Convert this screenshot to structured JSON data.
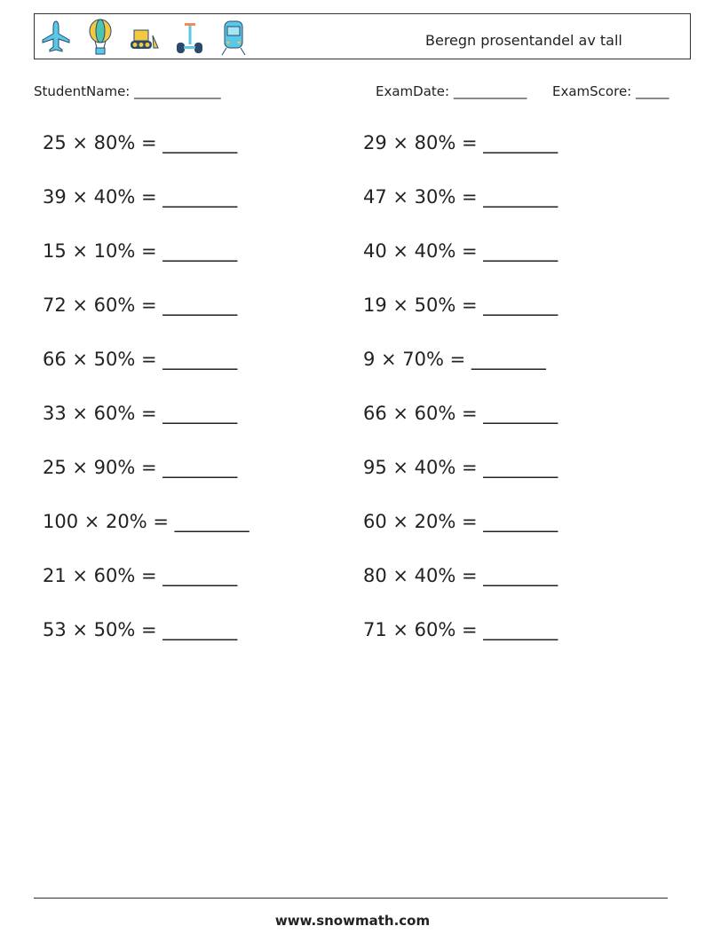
{
  "header": {
    "icons": [
      "airplane-icon",
      "hot-air-balloon-icon",
      "bulldozer-icon",
      "segway-icon",
      "train-icon"
    ],
    "title": "Beregn prosentandel av tall"
  },
  "meta": {
    "student_name": "StudentName: _____________",
    "exam_date": "ExamDate: ___________",
    "exam_score": "ExamScore: _____"
  },
  "problems": {
    "left": [
      "25 × 80% = ________",
      "39 × 40% = ________",
      "15 × 10% = ________",
      "72 × 60% = ________",
      "66 × 50% = ________",
      "33 × 60% = ________",
      "25 × 90% = ________",
      "100 × 20% = ________",
      "21 × 60% = ________",
      "53 × 50% = ________"
    ],
    "right": [
      "29 × 80% = ________",
      "47 × 30% = ________",
      "40 × 40% = ________",
      "19 × 50% = ________",
      "9 × 70% = ________",
      "66 × 60% = ________",
      "95 × 40% = ________",
      "60 × 20% = ________",
      "80 × 40% = ________",
      "71 × 60% = ________"
    ]
  },
  "footer": {
    "url": "www.snowmath.com"
  }
}
